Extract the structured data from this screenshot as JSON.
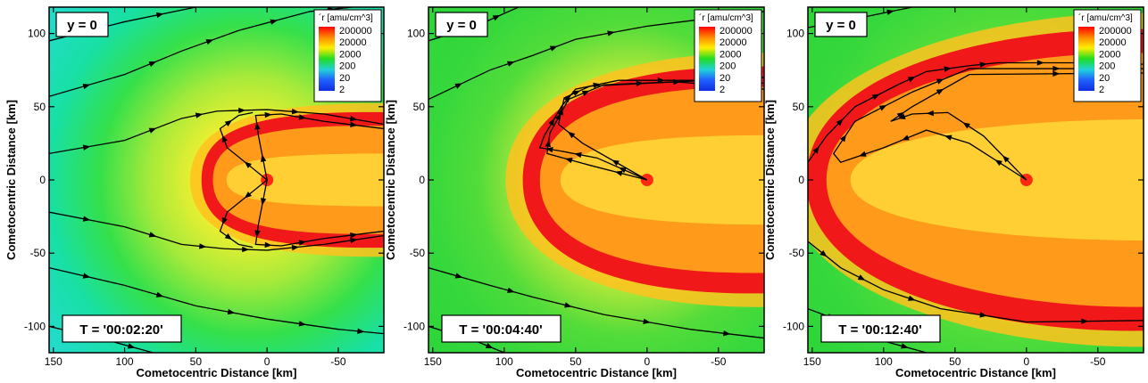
{
  "chart_data": [
    {
      "type": "heatmap",
      "plane_label": "y = 0",
      "time_label": "T = '00:02:20'",
      "xlabel": "Cometocentric Distance [km]",
      "ylabel": "Cometocentric Distance [km]",
      "xlim": [
        153,
        -82
      ],
      "ylim": [
        -118,
        118
      ],
      "xticks": [
        150,
        100,
        50,
        0,
        -50
      ],
      "yticks": [
        100,
        50,
        0,
        -50,
        -100
      ],
      "colorbar": {
        "title": "´r [amu/cm^3]",
        "levels": [
          "200000",
          "20000",
          "2000",
          "200",
          "20",
          "2"
        ]
      },
      "regime": "cyan",
      "shell": {
        "nose_x": 38,
        "half_width": 40,
        "thickness": 8
      },
      "streamlines": [
        {
          "points": [
            [
              153,
              95
            ],
            [
              100,
              108
            ],
            [
              50,
              118
            ]
          ]
        },
        {
          "points": [
            [
              153,
              57
            ],
            [
              100,
              72
            ],
            [
              60,
              88
            ],
            [
              20,
              102
            ],
            [
              -30,
              115
            ],
            [
              -60,
              118
            ]
          ]
        },
        {
          "points": [
            [
              153,
              18
            ],
            [
              100,
              27
            ],
            [
              60,
              42
            ],
            [
              35,
              47
            ],
            [
              0,
              48
            ],
            [
              -40,
              45
            ],
            [
              -82,
              38
            ]
          ]
        },
        {
          "points": [
            [
              153,
              -22
            ],
            [
              100,
              -32
            ],
            [
              60,
              -44
            ],
            [
              30,
              -47
            ],
            [
              0,
              -48
            ],
            [
              -40,
              -44
            ],
            [
              -82,
              -38
            ]
          ]
        },
        {
          "points": [
            [
              153,
              -60
            ],
            [
              100,
              -72
            ],
            [
              50,
              -86
            ],
            [
              0,
              -95
            ],
            [
              -50,
              -102
            ],
            [
              -82,
              -105
            ]
          ]
        },
        {
          "points": [
            [
              153,
              -100
            ],
            [
              110,
              -110
            ],
            [
              80,
              -118
            ]
          ]
        },
        {
          "points": [
            [
              0,
              0
            ],
            [
              28,
              22
            ],
            [
              33,
              35
            ],
            [
              20,
              44
            ],
            [
              10,
              46
            ]
          ]
        },
        {
          "points": [
            [
              0,
              0
            ],
            [
              28,
              -22
            ],
            [
              33,
              -35
            ],
            [
              20,
              -44
            ],
            [
              10,
              -46
            ]
          ]
        },
        {
          "points": [
            [
              0,
              0
            ],
            [
              6,
              30
            ],
            [
              8,
              44
            ],
            [
              -10,
              45
            ],
            [
              -40,
              40
            ],
            [
              -82,
              35
            ]
          ]
        },
        {
          "points": [
            [
              0,
              0
            ],
            [
              6,
              -30
            ],
            [
              8,
              -44
            ],
            [
              -10,
              -45
            ],
            [
              -40,
              -40
            ],
            [
              -82,
              -35
            ]
          ]
        }
      ]
    },
    {
      "type": "heatmap",
      "plane_label": "y = 0",
      "time_label": "T = '00:04:40'",
      "xlabel": "Cometocentric Distance [km]",
      "ylabel": "Cometocentric Distance [km]",
      "xlim": [
        153,
        -82
      ],
      "ylim": [
        -118,
        118
      ],
      "xticks": [
        150,
        100,
        50,
        0,
        -50
      ],
      "yticks": [
        100,
        50,
        0,
        -50,
        -100
      ],
      "colorbar": {
        "title": "´r [amu/cm^3]",
        "levels": [
          "200000",
          "20000",
          "2000",
          "200",
          "20",
          "2"
        ]
      },
      "regime": "green",
      "shell": {
        "nose_x": 75,
        "half_width": 68,
        "thickness": 12
      },
      "streamlines": [
        {
          "points": [
            [
              153,
              95
            ],
            [
              120,
              105
            ],
            [
              90,
              118
            ]
          ]
        },
        {
          "points": [
            [
              153,
              55
            ],
            [
              110,
              75
            ],
            [
              80,
              85
            ],
            [
              50,
              96
            ],
            [
              0,
              105
            ],
            [
              -82,
              115
            ]
          ]
        },
        {
          "points": [
            [
              0,
              0
            ],
            [
              35,
              15
            ],
            [
              62,
              20
            ],
            [
              75,
              22
            ],
            [
              72,
              30
            ],
            [
              60,
              50
            ],
            [
              50,
              62
            ],
            [
              20,
              68
            ],
            [
              -40,
              68
            ],
            [
              -82,
              66
            ]
          ]
        },
        {
          "points": [
            [
              0,
              0
            ],
            [
              40,
              10
            ],
            [
              70,
              18
            ],
            [
              68,
              32
            ],
            [
              55,
              55
            ],
            [
              30,
              65
            ],
            [
              -20,
              67
            ],
            [
              -82,
              62
            ]
          ]
        },
        {
          "points": [
            [
              0,
              0
            ],
            [
              45,
              25
            ],
            [
              62,
              38
            ],
            [
              58,
              56
            ],
            [
              40,
              64
            ],
            [
              -82,
              70
            ]
          ]
        },
        {
          "points": [
            [
              153,
              -60
            ],
            [
              110,
              -72
            ],
            [
              80,
              -80
            ],
            [
              30,
              -92
            ],
            [
              -30,
              -102
            ],
            [
              -82,
              -108
            ]
          ]
        },
        {
          "points": [
            [
              153,
              -100
            ],
            [
              120,
              -110
            ],
            [
              100,
              -118
            ]
          ]
        }
      ]
    },
    {
      "type": "heatmap",
      "plane_label": "y = 0",
      "time_label": "T = '00:12:40'",
      "xlabel": "Cometocentric Distance [km]",
      "ylabel": "Cometocentric Distance [km]",
      "xlim": [
        153,
        -82
      ],
      "ylim": [
        -118,
        118
      ],
      "xticks": [
        150,
        100,
        50,
        0,
        -50
      ],
      "yticks": [
        100,
        50,
        0,
        -50,
        -100
      ],
      "colorbar": {
        "title": "´r [amu/cm^3]",
        "levels": [
          "200000",
          "20000",
          "2000",
          "200",
          "20",
          "2"
        ]
      },
      "regime": "green",
      "shell": {
        "nose_x": 140,
        "half_width": 92,
        "thickness": 14
      },
      "streamlines": [
        {
          "points": [
            [
              153,
              104
            ],
            [
              110,
              112
            ],
            [
              80,
              118
            ]
          ]
        },
        {
          "points": [
            [
              153,
              12
            ],
            [
              140,
              30
            ],
            [
              120,
              50
            ],
            [
              90,
              65
            ],
            [
              70,
              74
            ],
            [
              40,
              78
            ],
            [
              20,
              80
            ],
            [
              -40,
              80
            ],
            [
              -82,
              79
            ]
          ]
        },
        {
          "points": [
            [
              0,
              0
            ],
            [
              40,
              25
            ],
            [
              70,
              34
            ],
            [
              100,
              22
            ],
            [
              130,
              12
            ],
            [
              135,
              18
            ],
            [
              120,
              40
            ],
            [
              80,
              60
            ],
            [
              40,
              76
            ],
            [
              -82,
              76
            ]
          ]
        },
        {
          "points": [
            [
              0,
              0
            ],
            [
              30,
              30
            ],
            [
              55,
              46
            ],
            [
              80,
              45
            ],
            [
              95,
              40
            ],
            [
              80,
              50
            ],
            [
              40,
              72
            ],
            [
              -82,
              73
            ]
          ]
        },
        {
          "points": [
            [
              153,
              -42
            ],
            [
              130,
              -60
            ],
            [
              100,
              -75
            ],
            [
              60,
              -88
            ],
            [
              0,
              -97
            ],
            [
              -82,
              -96
            ]
          ]
        },
        {
          "points": [
            [
              153,
              -88
            ],
            [
              120,
              -100
            ],
            [
              100,
              -110
            ],
            [
              70,
              -118
            ]
          ]
        }
      ]
    }
  ]
}
